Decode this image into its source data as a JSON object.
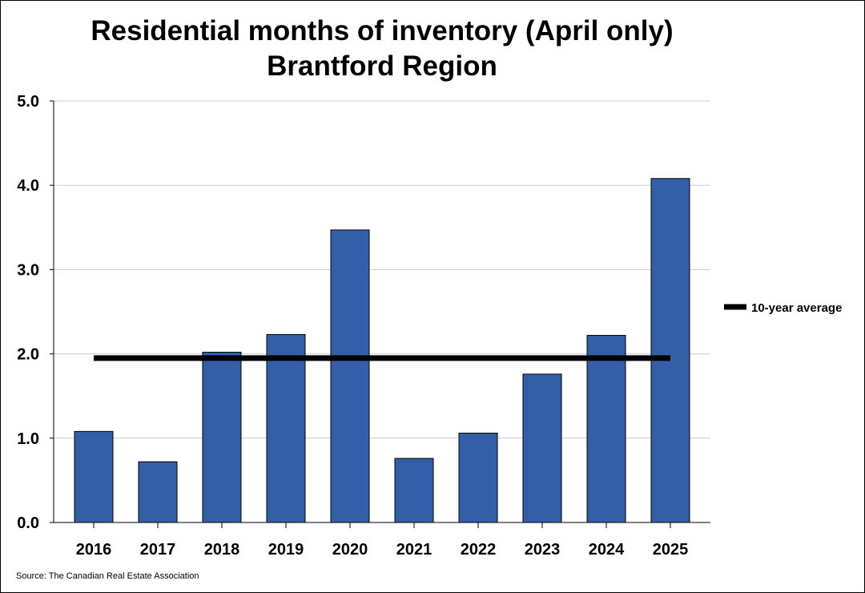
{
  "chart_data": {
    "type": "bar",
    "title": [
      "Residential months of inventory (April only)",
      "Brantford Region"
    ],
    "xlabel": "",
    "ylabel": "",
    "categories": [
      "2016",
      "2017",
      "2018",
      "2019",
      "2020",
      "2021",
      "2022",
      "2023",
      "2024",
      "2025"
    ],
    "series": [
      {
        "name": "",
        "values": [
          1.08,
          0.72,
          2.02,
          2.23,
          3.47,
          0.76,
          1.06,
          1.76,
          2.22,
          4.08
        ],
        "color": "#335FA8"
      }
    ],
    "reference_line": {
      "name": "10-year average",
      "value": 1.95,
      "color": "#000000"
    },
    "ylim": [
      0,
      5
    ],
    "yticks": [
      "0.0",
      "1.0",
      "2.0",
      "3.0",
      "4.0",
      "5.0"
    ],
    "grid": "horizontal",
    "legend": "right",
    "source": "Source: The Canadian Real Estate Association"
  }
}
